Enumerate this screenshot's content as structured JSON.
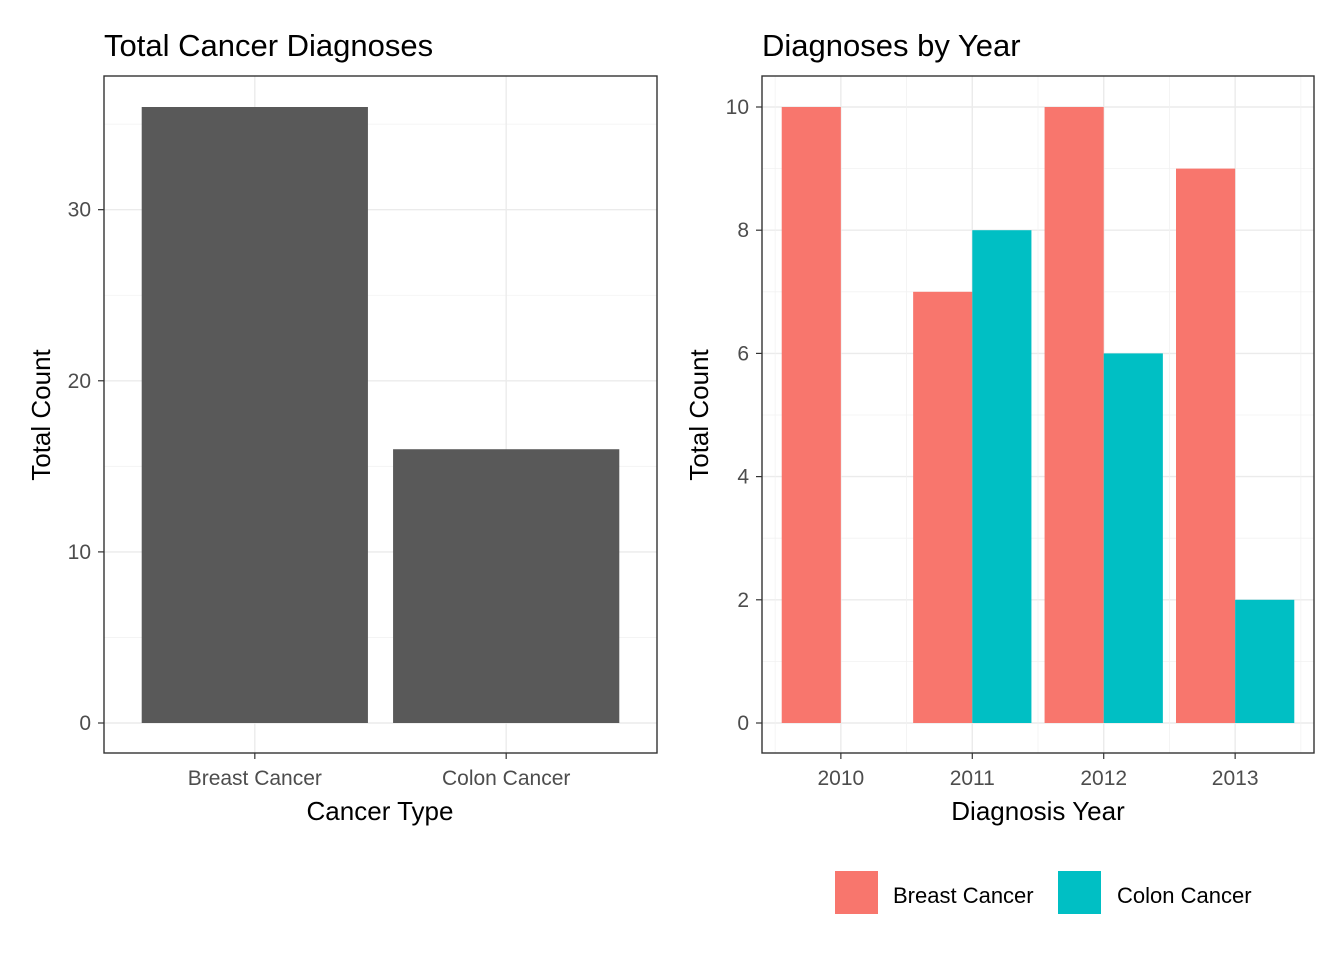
{
  "chart_data": [
    {
      "type": "bar",
      "title": "Total Cancer Diagnoses",
      "xlabel": "Cancer Type",
      "ylabel": "Total Count",
      "categories": [
        "Breast Cancer",
        "Colon Cancer"
      ],
      "values": [
        36,
        16
      ],
      "ylim": [
        0,
        36
      ],
      "yticks": [
        0,
        10,
        20,
        30
      ],
      "bar_color": "#595959",
      "grid": true
    },
    {
      "type": "bar",
      "title": "Diagnoses by Year",
      "xlabel": "Diagnosis Year",
      "ylabel": "Total Count",
      "categories": [
        "2010",
        "2011",
        "2012",
        "2013"
      ],
      "series": [
        {
          "name": "Breast Cancer",
          "color": "#F8766D",
          "values": [
            10,
            7,
            10,
            9
          ]
        },
        {
          "name": "Colon Cancer",
          "color": "#00BFC4",
          "values": [
            null,
            8,
            6,
            2
          ]
        }
      ],
      "ylim": [
        0,
        10
      ],
      "yticks": [
        0,
        2,
        4,
        6,
        8,
        10
      ],
      "legend_position": "bottom",
      "grid": true
    }
  ]
}
